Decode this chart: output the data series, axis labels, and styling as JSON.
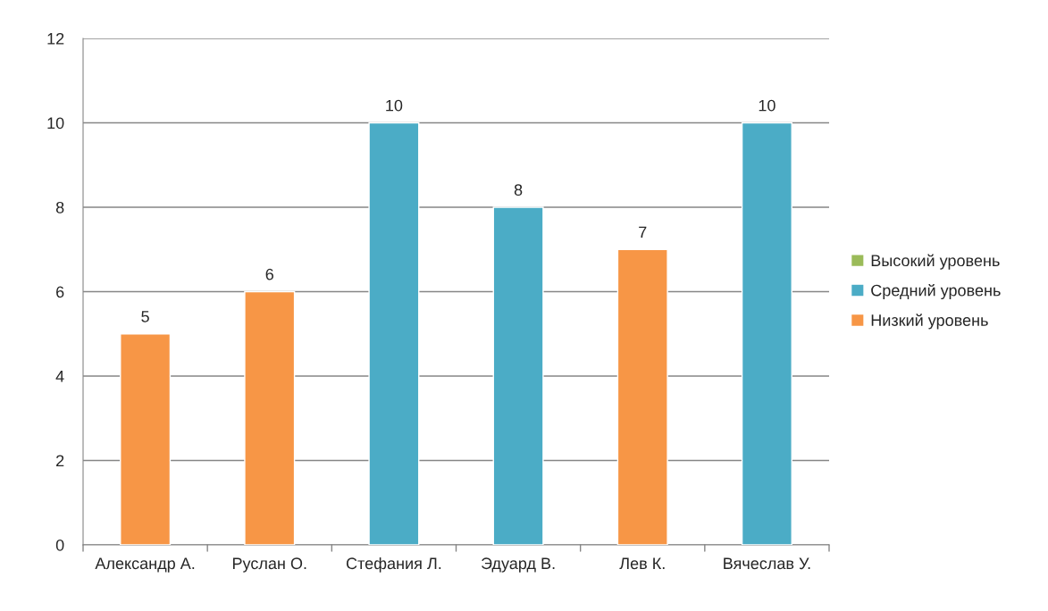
{
  "chart_data": {
    "type": "bar",
    "stacked": true,
    "categories": [
      "Александр А.",
      "Руслан О.",
      "Стефания Л.",
      "Эдуард В.",
      "Лев К.",
      "Вячеслав У."
    ],
    "series": [
      {
        "name": "Высокий уровень",
        "color": "#9bbb59",
        "values": [
          null,
          null,
          null,
          null,
          null,
          null
        ]
      },
      {
        "name": "Средний уровень",
        "color": "#4bacc6",
        "values": [
          null,
          null,
          10,
          8,
          null,
          10
        ]
      },
      {
        "name": "Низкий уровень",
        "color": "#f79646",
        "values": [
          5,
          6,
          null,
          null,
          7,
          null
        ]
      }
    ],
    "ylim": [
      0,
      12
    ],
    "yticks": [
      0,
      2,
      4,
      6,
      8,
      10,
      12
    ],
    "grid": "y",
    "legend": "right",
    "data_labels": true
  }
}
